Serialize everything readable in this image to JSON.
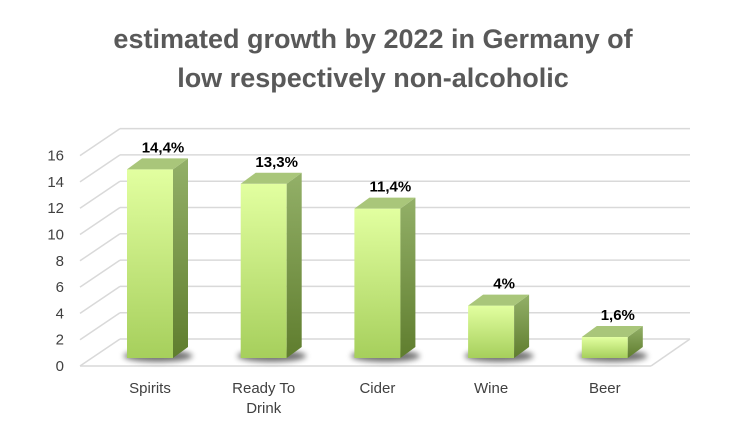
{
  "chart_data": {
    "type": "bar",
    "title_lines": [
      "estimated growth by 2022 in Germany of",
      "low respectively non-alcoholic"
    ],
    "categories": [
      [
        "Spirits"
      ],
      [
        "Ready To",
        "Drink"
      ],
      [
        "Cider"
      ],
      [
        "Wine"
      ],
      [
        "Beer"
      ]
    ],
    "values": [
      14.4,
      13.3,
      11.4,
      4,
      1.6
    ],
    "data_labels": [
      "14,4%",
      "13,3%",
      "11,4%",
      "4%",
      "1,6%"
    ],
    "yticks": [
      "0",
      "2",
      "4",
      "6",
      "8",
      "10",
      "12",
      "14",
      "16"
    ],
    "ylim": [
      0,
      16
    ],
    "grid": true,
    "three_d": true,
    "colors": {
      "front_top": "#e2ffa0",
      "front_bottom": "#a6cf5c",
      "side_top": "#93b068",
      "side_bottom": "#5f7d2e",
      "top": "#a9c67a",
      "grid": "#d9d9d9"
    }
  }
}
